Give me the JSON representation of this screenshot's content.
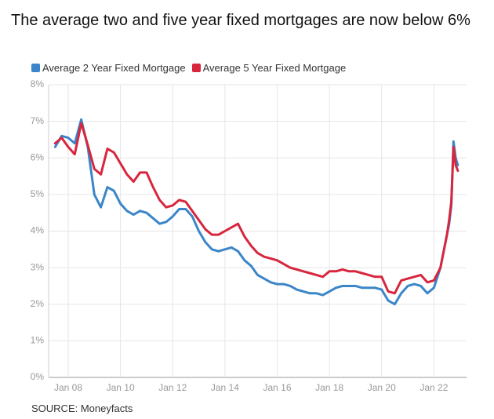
{
  "chart_data": {
    "type": "line",
    "title": "The average two and five year fixed mortgages are now below 6%",
    "source": "SOURCE: Moneyfacts",
    "x": [
      "2007-07",
      "2007-10",
      "2008-01",
      "2008-04",
      "2008-07",
      "2008-10",
      "2009-01",
      "2009-04",
      "2009-07",
      "2009-10",
      "2010-01",
      "2010-04",
      "2010-07",
      "2010-10",
      "2011-01",
      "2011-04",
      "2011-07",
      "2011-10",
      "2012-01",
      "2012-04",
      "2012-07",
      "2012-10",
      "2013-01",
      "2013-04",
      "2013-07",
      "2013-10",
      "2014-01",
      "2014-04",
      "2014-07",
      "2014-10",
      "2015-01",
      "2015-04",
      "2015-07",
      "2015-10",
      "2016-01",
      "2016-04",
      "2016-07",
      "2016-10",
      "2017-01",
      "2017-04",
      "2017-07",
      "2017-10",
      "2018-01",
      "2018-04",
      "2018-07",
      "2018-10",
      "2019-01",
      "2019-04",
      "2019-07",
      "2019-10",
      "2020-01",
      "2020-04",
      "2020-07",
      "2020-10",
      "2021-01",
      "2021-04",
      "2021-07",
      "2021-10",
      "2022-01",
      "2022-04",
      "2022-07",
      "2022-08",
      "2022-09",
      "2022-10",
      "2022-11",
      "2022-12"
    ],
    "series": [
      {
        "name": "Average 2 Year Fixed Mortgage",
        "color": "#3a86c8",
        "values": [
          6.3,
          6.6,
          6.55,
          6.4,
          7.05,
          6.3,
          5.0,
          4.65,
          5.2,
          5.1,
          4.75,
          4.55,
          4.45,
          4.55,
          4.5,
          4.35,
          4.2,
          4.25,
          4.4,
          4.6,
          4.6,
          4.4,
          4.0,
          3.7,
          3.5,
          3.45,
          3.5,
          3.55,
          3.45,
          3.2,
          3.05,
          2.8,
          2.7,
          2.6,
          2.55,
          2.55,
          2.5,
          2.4,
          2.35,
          2.3,
          2.3,
          2.25,
          2.35,
          2.45,
          2.5,
          2.5,
          2.5,
          2.45,
          2.45,
          2.45,
          2.4,
          2.1,
          2.0,
          2.3,
          2.5,
          2.55,
          2.5,
          2.3,
          2.45,
          3.0,
          3.9,
          4.2,
          4.7,
          6.45,
          6.0,
          5.8
        ]
      },
      {
        "name": "Average 5 Year Fixed Mortgage",
        "color": "#d7263d",
        "values": [
          6.4,
          6.55,
          6.3,
          6.1,
          6.95,
          6.35,
          5.7,
          5.55,
          6.25,
          6.15,
          5.85,
          5.55,
          5.35,
          5.6,
          5.6,
          5.2,
          4.85,
          4.65,
          4.7,
          4.85,
          4.8,
          4.55,
          4.3,
          4.05,
          3.9,
          3.9,
          4.0,
          4.1,
          4.2,
          3.85,
          3.6,
          3.4,
          3.3,
          3.25,
          3.2,
          3.1,
          3.0,
          2.95,
          2.9,
          2.85,
          2.8,
          2.75,
          2.9,
          2.9,
          2.95,
          2.9,
          2.9,
          2.85,
          2.8,
          2.75,
          2.75,
          2.35,
          2.3,
          2.65,
          2.7,
          2.75,
          2.8,
          2.6,
          2.65,
          3.0,
          3.9,
          4.3,
          4.8,
          6.3,
          5.8,
          5.65
        ]
      }
    ],
    "xlim": [
      "2007-04",
      "2023-04"
    ],
    "xticks": [
      {
        "value": "2008-01",
        "label": "Jan 08"
      },
      {
        "value": "2010-01",
        "label": "Jan 10"
      },
      {
        "value": "2012-01",
        "label": "Jan 12"
      },
      {
        "value": "2014-01",
        "label": "Jan 14"
      },
      {
        "value": "2016-01",
        "label": "Jan 16"
      },
      {
        "value": "2018-01",
        "label": "Jan 18"
      },
      {
        "value": "2020-01",
        "label": "Jan 20"
      },
      {
        "value": "2022-01",
        "label": "Jan 22"
      }
    ],
    "ylim": [
      0,
      8
    ],
    "yticks": [
      {
        "value": 0,
        "label": "0%"
      },
      {
        "value": 1,
        "label": "1%"
      },
      {
        "value": 2,
        "label": "2%"
      },
      {
        "value": 3,
        "label": "3%"
      },
      {
        "value": 4,
        "label": "4%"
      },
      {
        "value": 5,
        "label": "5%"
      },
      {
        "value": 6,
        "label": "6%"
      },
      {
        "value": 7,
        "label": "7%"
      },
      {
        "value": 8,
        "label": "8%"
      }
    ],
    "grid": true
  }
}
